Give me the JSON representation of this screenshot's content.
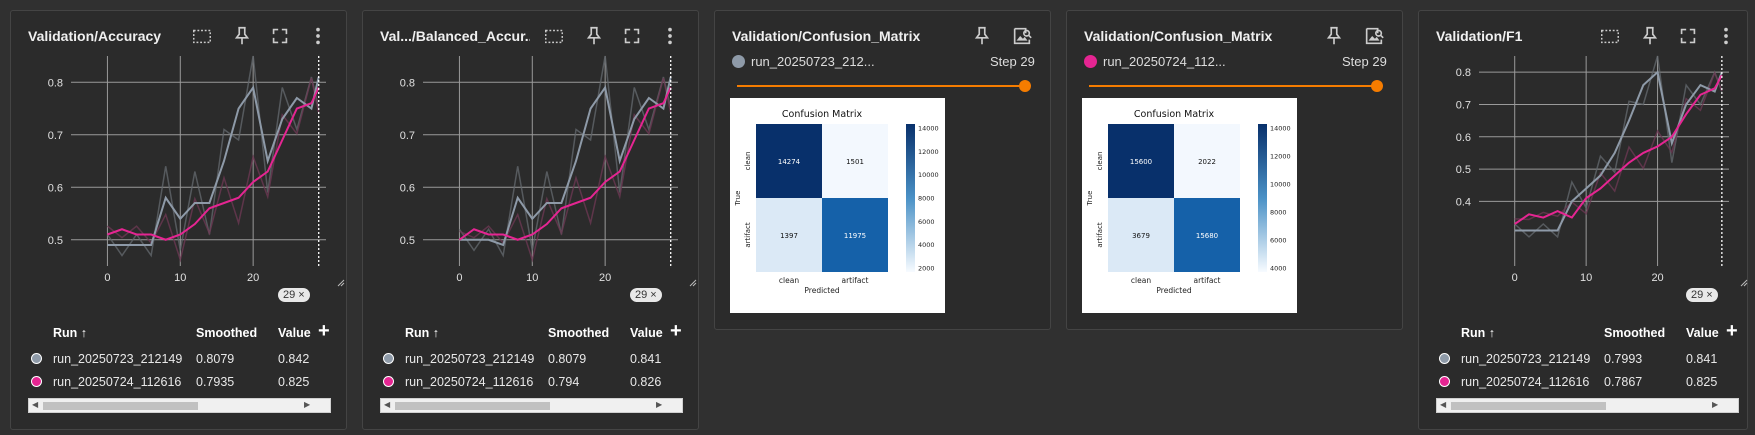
{
  "colors": {
    "series1": "#8e9aa8",
    "series2": "#e52592",
    "raw1": "#62666b",
    "raw2": "#6b3852",
    "slider": "#f57c00"
  },
  "icons": [
    "fit-domain-icon",
    "pin-icon",
    "fullscreen-icon",
    "more-vert-icon",
    "image-search-icon"
  ],
  "cards": [
    {
      "title": "Validation/Accuracy",
      "step_badge": "29 ×",
      "legend": {
        "run_header": "Run ↑",
        "smoothed_header": "Smoothed",
        "value_header": "Value",
        "rows": [
          {
            "run": "run_20250723_212149",
            "smoothed": "0.8079",
            "value": "0.842"
          },
          {
            "run": "run_20250724_112616",
            "smoothed": "0.7935",
            "value": "0.825"
          }
        ]
      }
    },
    {
      "title": "Val.../Balanced_Accur...",
      "step_badge": "29 ×",
      "legend": {
        "run_header": "Run ↑",
        "smoothed_header": "Smoothed",
        "value_header": "Value",
        "rows": [
          {
            "run": "run_20250723_212149",
            "smoothed": "0.8079",
            "value": "0.841"
          },
          {
            "run": "run_20250724_112616",
            "smoothed": "0.794",
            "value": "0.826"
          }
        ]
      }
    },
    {
      "title": "Validation/Confusion_Matrix",
      "run": "run_20250723_212...",
      "step": "Step 29",
      "image": {
        "title": "Confusion Matrix",
        "ylabel": "True",
        "xlabel": "Predicted",
        "row_labels": [
          "clean",
          "artifact"
        ],
        "col_labels": [
          "clean",
          "artifact"
        ],
        "cells": [
          "14274",
          "1501",
          "1397",
          "11975"
        ],
        "cbar_ticks": [
          "14000",
          "12000",
          "10000",
          "8000",
          "6000",
          "4000",
          "2000"
        ]
      }
    },
    {
      "title": "Validation/Confusion_Matrix",
      "run": "run_20250724_112...",
      "step": "Step 29",
      "image": {
        "title": "Confusion Matrix",
        "ylabel": "True",
        "xlabel": "Predicted",
        "row_labels": [
          "clean",
          "artifact"
        ],
        "col_labels": [
          "clean",
          "artifact"
        ],
        "cells": [
          "15600",
          "2022",
          "3679",
          "15680"
        ],
        "cbar_ticks": [
          "14000",
          "12000",
          "10000",
          "8000",
          "6000",
          "4000"
        ]
      }
    },
    {
      "title": "Validation/F1",
      "step_badge": "29 ×",
      "legend": {
        "run_header": "Run ↑",
        "smoothed_header": "Smoothed",
        "value_header": "Value",
        "rows": [
          {
            "run": "run_20250723_212149",
            "smoothed": "0.7993",
            "value": "0.841"
          },
          {
            "run": "run_20250724_112616",
            "smoothed": "0.7867",
            "value": "0.825"
          }
        ]
      }
    }
  ],
  "chart_data": [
    {
      "type": "line",
      "title": "Validation/Accuracy",
      "xlim": [
        -5,
        30
      ],
      "ylim": [
        0.45,
        0.85
      ],
      "xticks": [
        0,
        10,
        20
      ],
      "yticks": [
        0.5,
        0.6,
        0.7,
        0.8
      ],
      "grid": true,
      "marker_step": 29,
      "series": [
        {
          "name": "run_20250723_212149",
          "x": [
            0,
            2,
            4,
            6,
            8,
            10,
            12,
            14,
            16,
            18,
            20,
            22,
            24,
            26,
            28,
            29
          ],
          "values": [
            0.49,
            0.49,
            0.49,
            0.49,
            0.58,
            0.54,
            0.57,
            0.57,
            0.65,
            0.75,
            0.79,
            0.65,
            0.73,
            0.77,
            0.75,
            0.81
          ]
        },
        {
          "name": "run_20250724_112616",
          "x": [
            0,
            2,
            4,
            6,
            8,
            10,
            12,
            14,
            16,
            18,
            20,
            22,
            24,
            26,
            28,
            29
          ],
          "values": [
            0.51,
            0.52,
            0.51,
            0.51,
            0.5,
            0.51,
            0.53,
            0.56,
            0.57,
            0.58,
            0.61,
            0.63,
            0.69,
            0.75,
            0.76,
            0.79
          ]
        }
      ]
    },
    {
      "type": "line",
      "title": "Val.../Balanced_Accur...",
      "xlim": [
        -5,
        30
      ],
      "ylim": [
        0.45,
        0.85
      ],
      "xticks": [
        0,
        10,
        20
      ],
      "yticks": [
        0.5,
        0.6,
        0.7,
        0.8
      ],
      "grid": true,
      "marker_step": 29,
      "series": [
        {
          "name": "run_20250723_212149",
          "x": [
            0,
            2,
            4,
            6,
            8,
            10,
            12,
            14,
            16,
            18,
            20,
            22,
            24,
            26,
            28,
            29
          ],
          "values": [
            0.5,
            0.5,
            0.5,
            0.49,
            0.58,
            0.54,
            0.57,
            0.57,
            0.65,
            0.75,
            0.79,
            0.65,
            0.73,
            0.77,
            0.75,
            0.81
          ]
        },
        {
          "name": "run_20250724_112616",
          "x": [
            0,
            2,
            4,
            6,
            8,
            10,
            12,
            14,
            16,
            18,
            20,
            22,
            24,
            26,
            28,
            29
          ],
          "values": [
            0.5,
            0.52,
            0.51,
            0.51,
            0.5,
            0.51,
            0.53,
            0.56,
            0.57,
            0.58,
            0.61,
            0.63,
            0.69,
            0.75,
            0.76,
            0.79
          ]
        }
      ]
    },
    {
      "type": "line",
      "title": "Validation/F1",
      "xlim": [
        -5,
        30
      ],
      "ylim": [
        0.2,
        0.85
      ],
      "xticks": [
        0,
        10,
        20
      ],
      "yticks": [
        0.4,
        0.5,
        0.6,
        0.7,
        0.8
      ],
      "grid": true,
      "marker_step": 29,
      "series": [
        {
          "name": "run_20250723_212149",
          "x": [
            0,
            2,
            4,
            6,
            8,
            10,
            12,
            14,
            16,
            18,
            20,
            22,
            24,
            26,
            28,
            29
          ],
          "values": [
            0.31,
            0.31,
            0.31,
            0.31,
            0.4,
            0.44,
            0.48,
            0.55,
            0.65,
            0.76,
            0.8,
            0.58,
            0.7,
            0.76,
            0.74,
            0.8
          ]
        },
        {
          "name": "run_20250724_112616",
          "x": [
            0,
            2,
            4,
            6,
            8,
            10,
            12,
            14,
            16,
            18,
            20,
            22,
            24,
            26,
            28,
            29
          ],
          "values": [
            0.33,
            0.36,
            0.35,
            0.37,
            0.35,
            0.41,
            0.44,
            0.48,
            0.52,
            0.55,
            0.57,
            0.6,
            0.67,
            0.73,
            0.75,
            0.79
          ]
        }
      ]
    }
  ]
}
